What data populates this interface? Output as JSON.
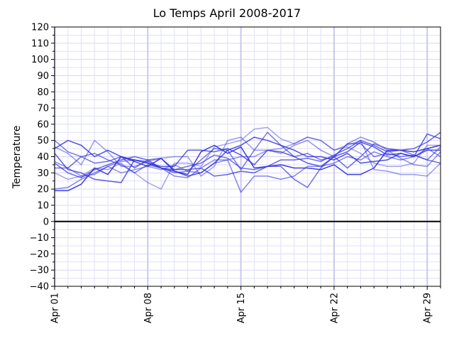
{
  "chart_data": {
    "type": "line",
    "title": "Lo Temps April 2008-2017",
    "xlabel": "",
    "ylabel": "Temperature",
    "xlim": [
      "Apr 01",
      "Apr 30"
    ],
    "ylim": [
      -40,
      120
    ],
    "xticks": [
      "Apr 01",
      "Apr 08",
      "Apr 15",
      "Apr 22",
      "Apr 29"
    ],
    "yticks": [
      "−40",
      "−30",
      "−20",
      "−10",
      "0",
      "10",
      "20",
      "30",
      "40",
      "50",
      "60",
      "70",
      "80",
      "90",
      "100",
      "110",
      "120"
    ],
    "grid": true,
    "reference_line": 0,
    "line_color": "#3333dd",
    "reference_color": "#000000",
    "categories": [
      "Apr 01",
      "Apr 02",
      "Apr 03",
      "Apr 04",
      "Apr 05",
      "Apr 06",
      "Apr 07",
      "Apr 08",
      "Apr 09",
      "Apr 10",
      "Apr 11",
      "Apr 12",
      "Apr 13",
      "Apr 14",
      "Apr 15",
      "Apr 16",
      "Apr 17",
      "Apr 18",
      "Apr 19",
      "Apr 20",
      "Apr 21",
      "Apr 22",
      "Apr 23",
      "Apr 24",
      "Apr 25",
      "Apr 26",
      "Apr 27",
      "Apr 28",
      "Apr 29",
      "Apr 30"
    ],
    "series": [
      {
        "opacity": 0.95,
        "values": [
          19,
          19,
          23,
          33,
          29,
          40,
          37,
          34,
          39,
          31,
          29,
          43,
          47,
          42,
          46,
          33,
          34,
          35,
          33,
          33,
          32,
          35,
          29,
          29,
          33,
          44,
          44,
          43,
          45,
          47
        ]
      },
      {
        "opacity": 0.85,
        "values": [
          45,
          50,
          47,
          40,
          44,
          40,
          38,
          36,
          33,
          31,
          28,
          30,
          36,
          44,
          47,
          52,
          50,
          47,
          44,
          40,
          40,
          38,
          42,
          36,
          37,
          38,
          42,
          40,
          44,
          44
        ]
      },
      {
        "opacity": 0.8,
        "values": [
          42,
          32,
          30,
          26,
          25,
          24,
          38,
          36,
          34,
          34,
          44,
          44,
          43,
          45,
          41,
          35,
          44,
          43,
          40,
          36,
          34,
          40,
          43,
          49,
          46,
          41,
          42,
          40,
          54,
          51
        ]
      },
      {
        "opacity": 0.75,
        "values": [
          36,
          30,
          27,
          32,
          35,
          38,
          40,
          38,
          39,
          32,
          32,
          33,
          28,
          29,
          31,
          30,
          34,
          38,
          38,
          39,
          37,
          41,
          45,
          50,
          47,
          43,
          44,
          45,
          49,
          55
        ]
      },
      {
        "opacity": 0.7,
        "values": [
          33,
          33,
          40,
          36,
          37,
          40,
          33,
          38,
          33,
          32,
          34,
          36,
          41,
          39,
          33,
          32,
          34,
          34,
          26,
          21,
          33,
          40,
          33,
          40,
          48,
          45,
          44,
          41,
          38,
          36
        ]
      },
      {
        "opacity": 0.65,
        "values": [
          50,
          43,
          40,
          42,
          38,
          35,
          30,
          35,
          33,
          30,
          31,
          38,
          45,
          44,
          32,
          44,
          55,
          47,
          40,
          42,
          38,
          40,
          48,
          48,
          40,
          42,
          40,
          41,
          38,
          46
        ]
      },
      {
        "opacity": 0.6,
        "values": [
          20,
          21,
          26,
          30,
          34,
          37,
          38,
          37,
          33,
          28,
          27,
          33,
          38,
          38,
          18,
          28,
          28,
          26,
          28,
          34,
          34,
          36,
          40,
          38,
          43,
          40,
          38,
          40,
          45,
          40
        ]
      },
      {
        "opacity": 0.55,
        "values": [
          37,
          33,
          28,
          29,
          34,
          30,
          32,
          34,
          32,
          35,
          31,
          30,
          36,
          38,
          40,
          40,
          44,
          42,
          47,
          50,
          44,
          40,
          48,
          52,
          49,
          44,
          39,
          35,
          34,
          43
        ]
      },
      {
        "opacity": 0.5,
        "values": [
          46,
          42,
          35,
          50,
          43,
          34,
          34,
          37,
          39,
          40,
          40,
          28,
          34,
          50,
          52,
          44,
          44,
          45,
          48,
          52,
          50,
          44,
          47,
          50,
          32,
          31,
          29,
          29,
          28,
          36
        ]
      },
      {
        "opacity": 0.45,
        "values": [
          30,
          26,
          28,
          33,
          32,
          36,
          30,
          24,
          20,
          36,
          36,
          34,
          46,
          48,
          50,
          57,
          58,
          51,
          48,
          52,
          50,
          44,
          46,
          42,
          36,
          34,
          34,
          36,
          47,
          47
        ]
      }
    ]
  }
}
